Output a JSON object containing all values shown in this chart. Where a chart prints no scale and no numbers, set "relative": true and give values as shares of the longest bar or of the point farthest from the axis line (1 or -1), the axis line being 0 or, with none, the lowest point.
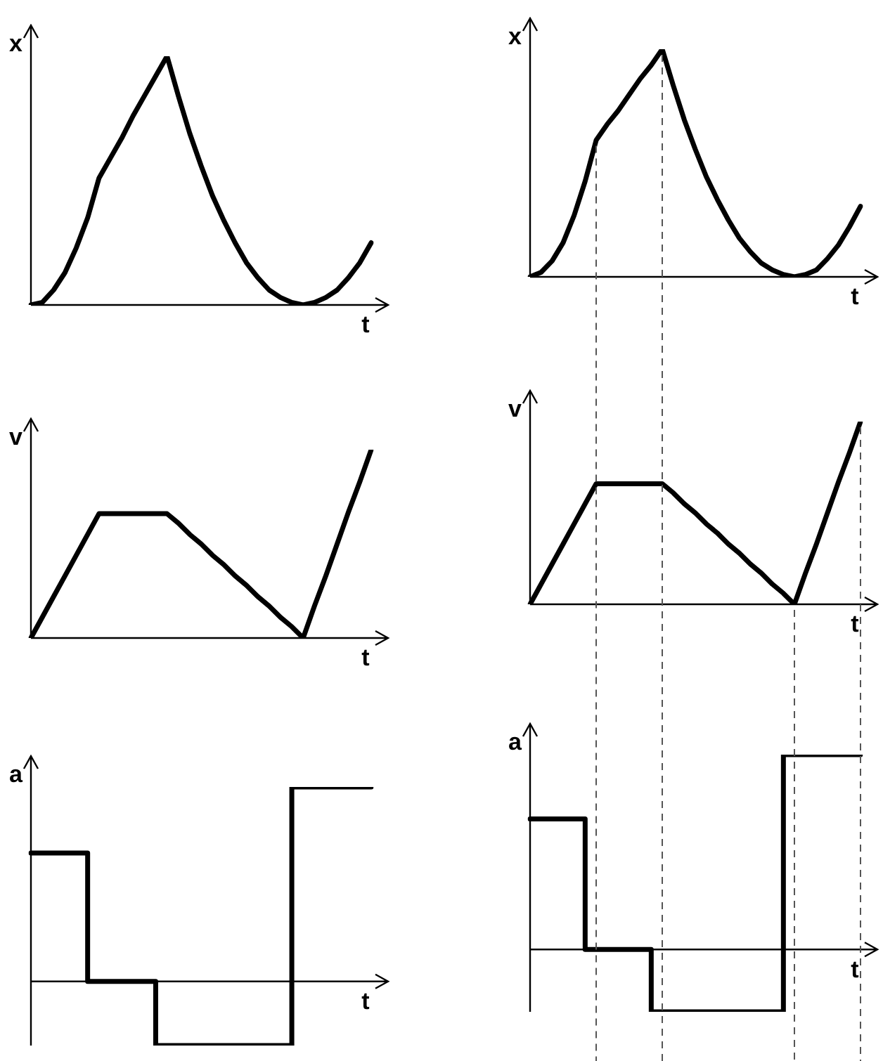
{
  "chart_data": [
    {
      "type": "line",
      "relative": true,
      "ylabel": "x",
      "xlabel": "t",
      "categories": [
        null,
        null,
        null,
        null,
        null,
        null,
        null,
        null,
        null,
        null,
        null,
        null,
        null,
        null,
        null,
        null,
        null,
        null,
        null,
        null,
        null,
        null,
        null,
        null,
        null,
        null,
        null,
        null,
        null,
        null,
        null
      ],
      "series": [
        {
          "color": "#000000",
          "values": [
            0,
            0.01,
            0.06,
            0.13,
            0.23,
            0.35,
            0.51,
            0.59,
            0.67,
            0.76,
            0.84,
            0.92,
            1,
            0.84,
            0.69,
            0.56,
            0.44,
            0.34,
            0.25,
            0.17,
            0.11,
            0.06,
            0.03,
            0.01,
            0,
            0.01,
            0.03,
            0.06,
            0.11,
            0.17,
            0.25
          ]
        }
      ]
    },
    {
      "type": "line",
      "relative": true,
      "ylabel": "x",
      "xlabel": "t",
      "categories": [
        null,
        null,
        null,
        null,
        null,
        null,
        null,
        null,
        null,
        null,
        null,
        null,
        null,
        null,
        null,
        null,
        null,
        null,
        null,
        null,
        null,
        null,
        null,
        null,
        null,
        null,
        null,
        null,
        null,
        null,
        null
      ],
      "series": [
        {
          "color": "#000000",
          "values": [
            0,
            0.02,
            0.07,
            0.15,
            0.27,
            0.42,
            0.6,
            0.67,
            0.73,
            0.8,
            0.87,
            0.93,
            1,
            0.84,
            0.69,
            0.56,
            0.44,
            0.34,
            0.25,
            0.17,
            0.11,
            0.06,
            0.03,
            0.01,
            0,
            0.01,
            0.03,
            0.08,
            0.14,
            0.22,
            0.31
          ]
        }
      ]
    },
    {
      "type": "line",
      "relative": true,
      "ylabel": "v",
      "xlabel": "t",
      "categories": [
        null,
        null,
        null,
        null,
        null,
        null,
        null,
        null,
        null,
        null,
        null,
        null,
        null,
        null,
        null,
        null,
        null,
        null,
        null,
        null,
        null,
        null,
        null,
        null,
        null,
        null,
        null,
        null,
        null,
        null,
        null
      ],
      "series": [
        {
          "color": "#000000",
          "values": [
            0,
            0.11,
            0.22,
            0.33,
            0.44,
            0.55,
            0.66,
            0.66,
            0.66,
            0.66,
            0.66,
            0.66,
            0.66,
            0.61,
            0.55,
            0.5,
            0.44,
            0.39,
            0.33,
            0.28,
            0.22,
            0.17,
            0.11,
            0.06,
            0,
            0.17,
            0.33,
            0.5,
            0.67,
            0.83,
            1
          ]
        }
      ]
    },
    {
      "type": "line",
      "relative": true,
      "ylabel": "v",
      "xlabel": "t",
      "categories": [
        null,
        null,
        null,
        null,
        null,
        null,
        null,
        null,
        null,
        null,
        null,
        null,
        null,
        null,
        null,
        null,
        null,
        null,
        null,
        null,
        null,
        null,
        null,
        null,
        null,
        null,
        null,
        null,
        null,
        null,
        null
      ],
      "series": [
        {
          "color": "#000000",
          "values": [
            0,
            0.11,
            0.22,
            0.33,
            0.44,
            0.55,
            0.66,
            0.66,
            0.66,
            0.66,
            0.66,
            0.66,
            0.66,
            0.61,
            0.55,
            0.5,
            0.44,
            0.39,
            0.33,
            0.28,
            0.22,
            0.17,
            0.11,
            0.06,
            0,
            0.17,
            0.33,
            0.5,
            0.67,
            0.83,
            1
          ]
        }
      ]
    },
    {
      "type": "step",
      "relative": true,
      "ylabel": "a",
      "xlabel": "t",
      "categories": [
        null,
        null,
        null,
        null,
        null,
        null,
        null,
        null,
        null,
        null,
        null,
        null,
        null,
        null,
        null,
        null,
        null,
        null,
        null,
        null,
        null,
        null,
        null,
        null,
        null,
        null,
        null,
        null,
        null,
        null,
        null
      ],
      "series": [
        {
          "color": "#000000",
          "values": [
            0.66,
            0.66,
            0.66,
            0.66,
            0.66,
            0.66,
            0,
            0,
            0,
            0,
            0,
            0,
            -0.33,
            -0.33,
            -0.33,
            -0.33,
            -0.33,
            -0.33,
            -0.33,
            -0.33,
            -0.33,
            -0.33,
            -0.33,
            -0.33,
            1,
            1,
            1,
            1,
            1,
            1,
            1
          ]
        }
      ]
    },
    {
      "type": "step",
      "relative": true,
      "ylabel": "a",
      "xlabel": "t",
      "categories": [
        null,
        null,
        null,
        null,
        null,
        null,
        null,
        null,
        null,
        null,
        null,
        null,
        null,
        null,
        null,
        null,
        null,
        null,
        null,
        null,
        null,
        null,
        null,
        null,
        null,
        null,
        null,
        null,
        null,
        null,
        null
      ],
      "series": [
        {
          "color": "#000000",
          "values": [
            0.67,
            0.67,
            0.67,
            0.67,
            0.67,
            0.67,
            0,
            0,
            0,
            0,
            0,
            0,
            -0.32,
            -0.32,
            -0.32,
            -0.32,
            -0.32,
            -0.32,
            -0.32,
            -0.32,
            -0.32,
            -0.32,
            -0.32,
            -0.32,
            1,
            1,
            1,
            1,
            1,
            1,
            1
          ]
        }
      ]
    }
  ]
}
